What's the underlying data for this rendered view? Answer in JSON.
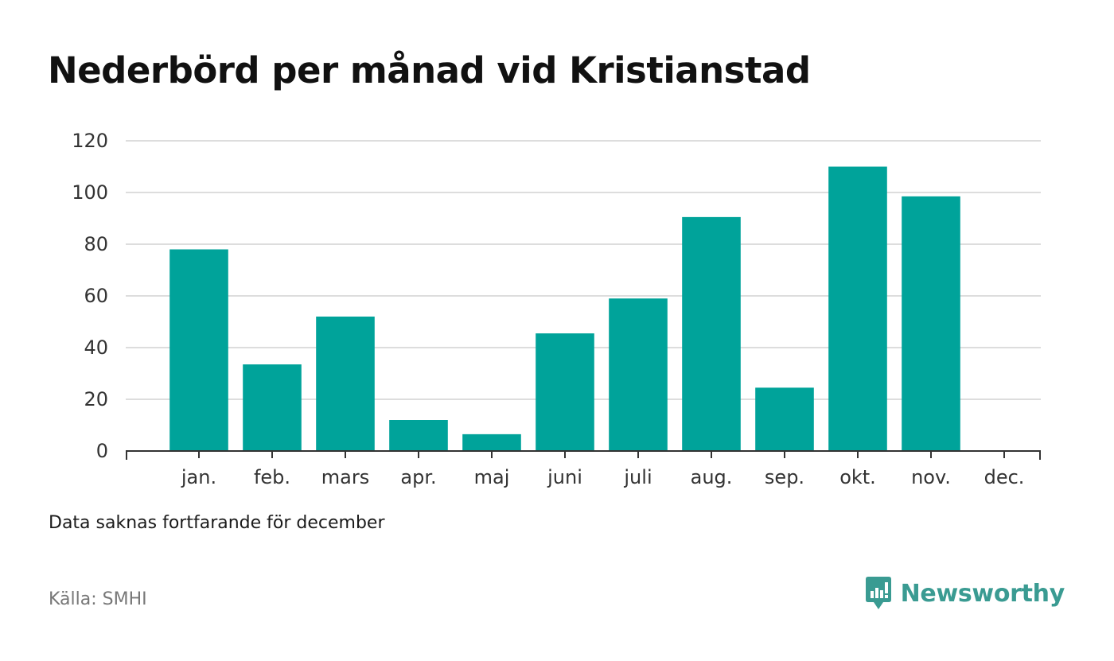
{
  "title": "Nederbörd per månad vid Kristianstad",
  "note": "Data saknas fortfarande för december",
  "source": "Källa: SMHI",
  "brand": {
    "name": "Newsworthy",
    "icon": "newsworthy-logo-icon",
    "color": "#3a9b92"
  },
  "chart_data": {
    "type": "bar",
    "categories": [
      "jan.",
      "feb.",
      "mars",
      "apr.",
      "maj",
      "juni",
      "juli",
      "aug.",
      "sep.",
      "okt.",
      "nov.",
      "dec."
    ],
    "values": [
      78,
      33.5,
      52,
      12,
      6.5,
      45.5,
      59,
      90.5,
      24.5,
      110,
      98.5,
      null
    ],
    "yticks": [
      0,
      20,
      40,
      60,
      80,
      100,
      120
    ],
    "ylim": [
      0,
      120
    ],
    "bar_color": "#00a39a",
    "grid": true,
    "xlabel": "",
    "ylabel": ""
  }
}
